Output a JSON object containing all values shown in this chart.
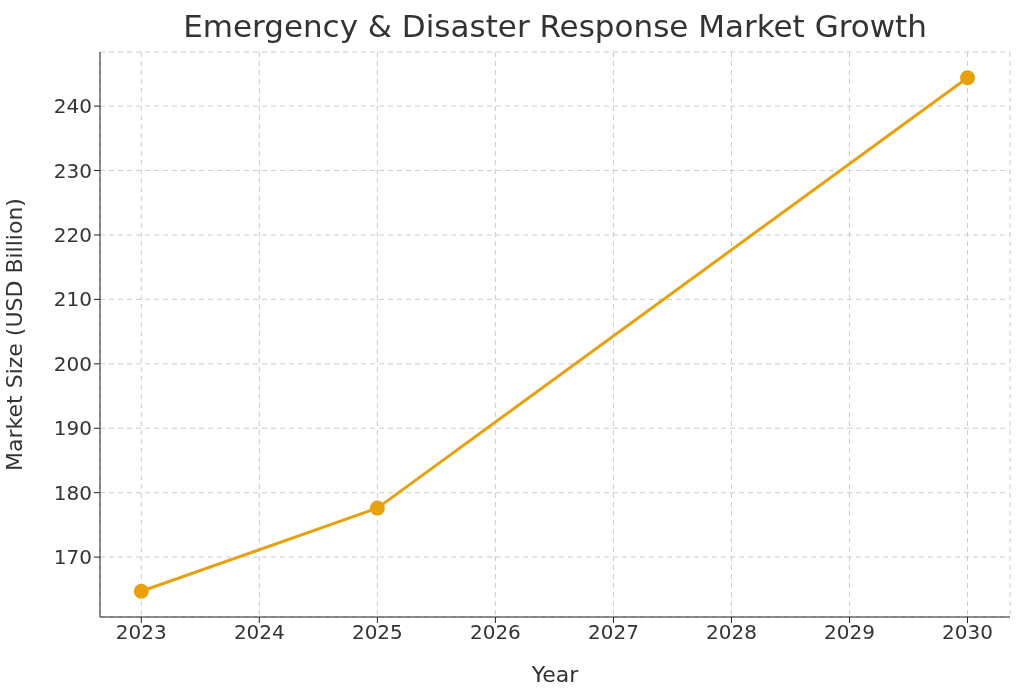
{
  "chart_data": {
    "type": "line",
    "title": "Emergency & Disaster Response Market Growth",
    "xlabel": "Year",
    "ylabel": "Market Size (USD Billion)",
    "x": [
      2023,
      2025,
      2030
    ],
    "series": [
      {
        "color": "#e8a10e",
        "values": [
          164.7,
          177.6,
          244.4
        ]
      }
    ],
    "xlim": [
      2022.65,
      2030.36
    ],
    "xticks": [
      2023,
      2024,
      2025,
      2026,
      2027,
      2028,
      2029,
      2030
    ],
    "ylim": [
      160.7,
      248.4
    ],
    "yticks": [
      170,
      180,
      190,
      200,
      210,
      220,
      230,
      240
    ],
    "grid": true,
    "marker": "circle",
    "line_style": "solid"
  }
}
